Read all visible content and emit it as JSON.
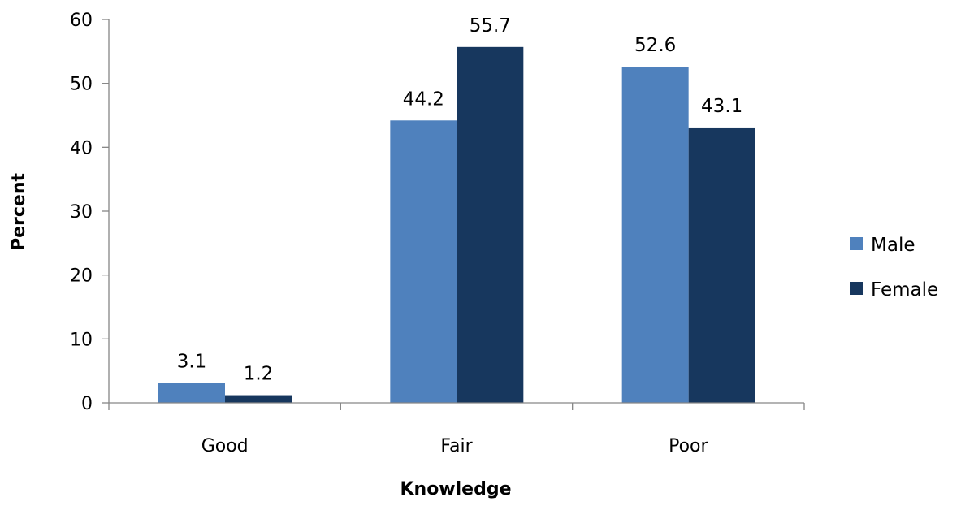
{
  "chart_data": {
    "type": "bar",
    "categories": [
      "Good",
      "Fair",
      "Poor"
    ],
    "series": [
      {
        "name": "Male",
        "values": [
          3.1,
          44.2,
          52.6
        ],
        "color": "#4f81bd"
      },
      {
        "name": "Female",
        "values": [
          1.2,
          55.7,
          43.1
        ],
        "color": "#17375e"
      }
    ],
    "data_labels": [
      [
        "3.1",
        "44.2",
        "52.6"
      ],
      [
        "1.2",
        "55.7",
        "43.1"
      ]
    ],
    "xlabel": "Knowledge",
    "ylabel": "Percent",
    "ylim": [
      0,
      60
    ],
    "yticks": [
      0,
      10,
      20,
      30,
      40,
      50,
      60
    ],
    "ytick_labels": [
      "0",
      "10",
      "20",
      "30",
      "40",
      "50",
      "60"
    ],
    "grid": false,
    "legend_position": "right"
  }
}
